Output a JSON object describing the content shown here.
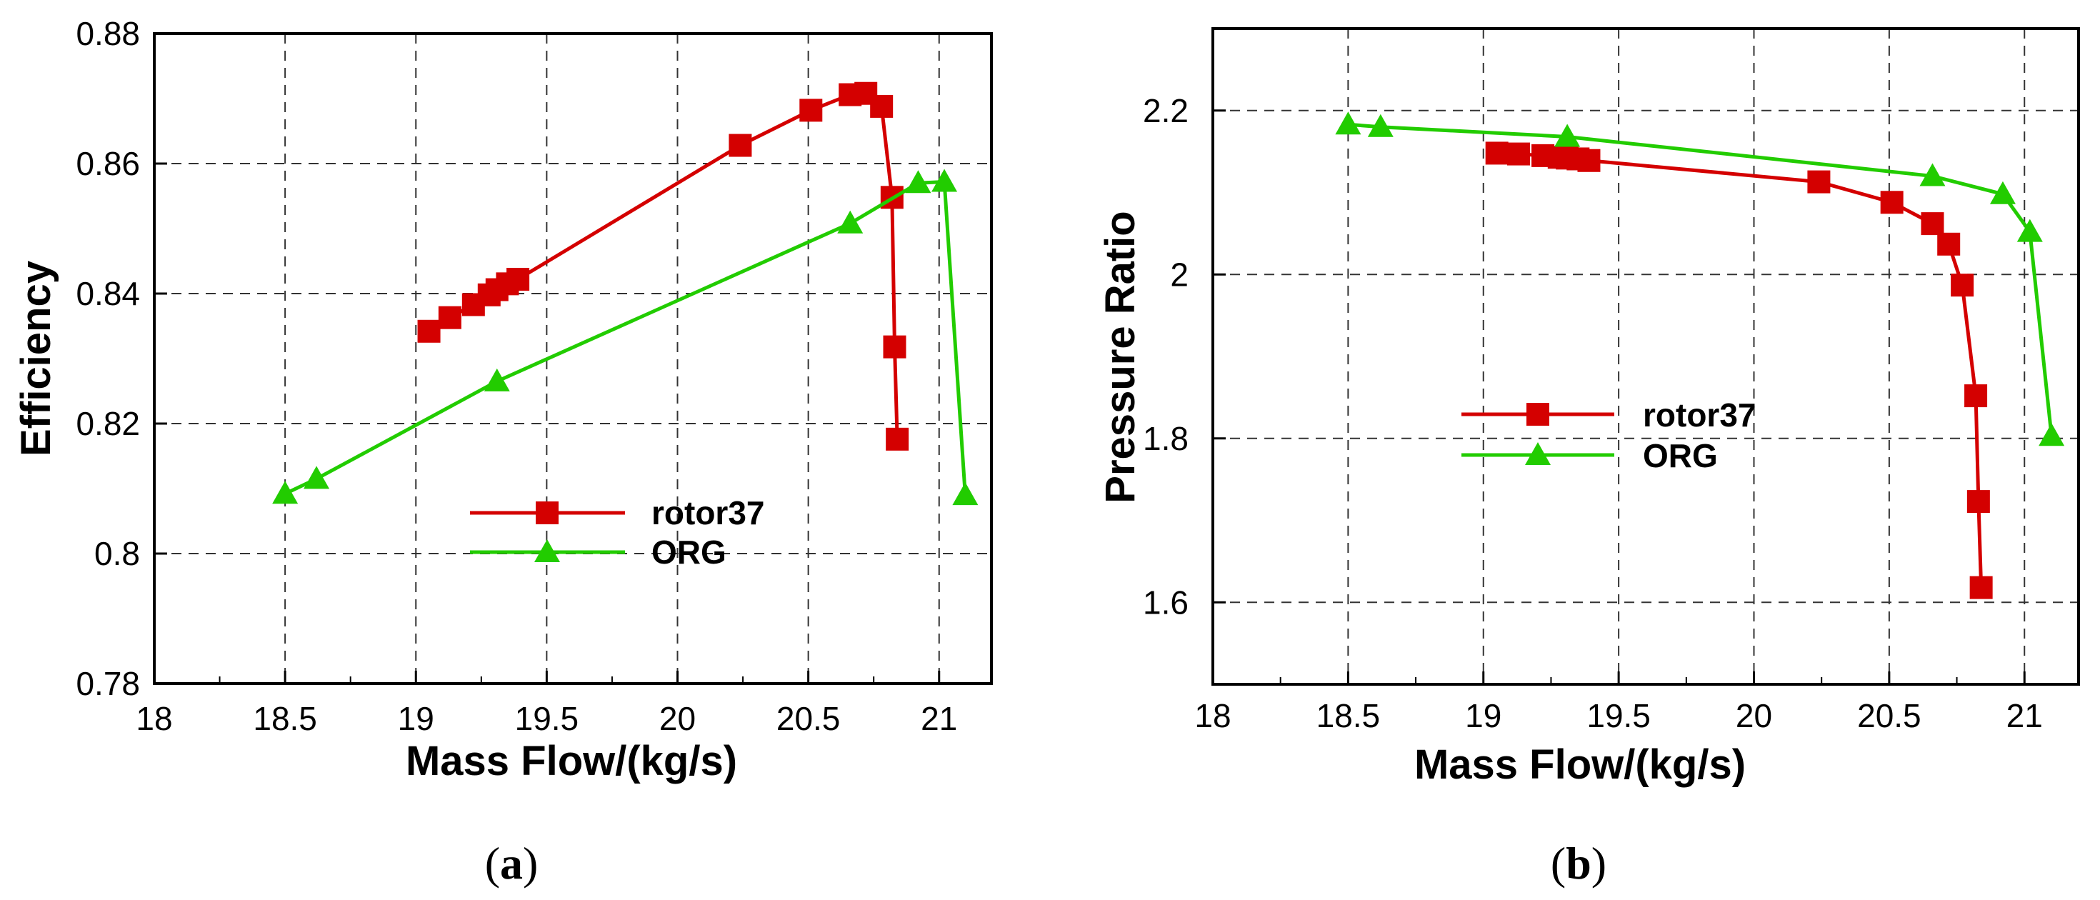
{
  "chart_data": [
    {
      "type": "line",
      "panel_label": "a",
      "xlabel": "Mass Flow/(kg/s)",
      "ylabel": "Efficiency",
      "xlim": [
        18,
        21.2
      ],
      "ylim": [
        0.78,
        0.88
      ],
      "xticks": [
        18,
        18.5,
        19,
        19.5,
        20,
        20.5,
        21
      ],
      "xtick_labels": [
        "18",
        "18.5",
        "19",
        "19.5",
        "20",
        "20.5",
        "21"
      ],
      "yticks": [
        0.78,
        0.8,
        0.82,
        0.84,
        0.86,
        0.88
      ],
      "ytick_labels": [
        "0.78",
        "0.8",
        "0.82",
        "0.84",
        "0.86",
        "0.88"
      ],
      "grid": true,
      "legend_position": "lower-middle",
      "series": [
        {
          "name": "rotor37",
          "color": "#d40000",
          "marker": "square",
          "x": [
            19.05,
            19.13,
            19.22,
            19.28,
            19.31,
            19.35,
            19.39,
            20.24,
            20.51,
            20.66,
            20.72,
            20.78,
            20.82,
            20.83,
            20.84
          ],
          "y": [
            0.8342,
            0.8363,
            0.8383,
            0.8398,
            0.8406,
            0.8415,
            0.8422,
            0.8628,
            0.8682,
            0.8706,
            0.8708,
            0.8688,
            0.8548,
            0.8318,
            0.8176
          ]
        },
        {
          "name": "ORG",
          "color": "#22cc00",
          "marker": "triangle",
          "x": [
            18.5,
            18.62,
            19.31,
            20.66,
            20.92,
            21.02,
            21.1
          ],
          "y": [
            0.8092,
            0.8115,
            0.8265,
            0.8508,
            0.857,
            0.8572,
            0.809
          ]
        }
      ]
    },
    {
      "type": "line",
      "panel_label": "b",
      "xlabel": "Mass Flow/(kg/s)",
      "ylabel": "Pressure Ratio",
      "xlim": [
        18,
        21.2
      ],
      "ylim": [
        1.5,
        2.3
      ],
      "xticks": [
        18,
        18.5,
        19,
        19.5,
        20,
        20.5,
        21
      ],
      "xtick_labels": [
        "18",
        "18.5",
        "19",
        "19.5",
        "20",
        "20.5",
        "21"
      ],
      "yticks": [
        1.6,
        1.8,
        2,
        2.2
      ],
      "ytick_labels": [
        "1.6",
        "1.8",
        "2",
        "2.2"
      ],
      "grid": true,
      "legend_position": "center",
      "series": [
        {
          "name": "rotor37",
          "color": "#d40000",
          "marker": "square",
          "x": [
            19.05,
            19.13,
            19.22,
            19.28,
            19.31,
            19.35,
            19.39,
            20.24,
            20.51,
            20.66,
            20.72,
            20.77,
            20.82,
            20.83,
            20.84
          ],
          "y": [
            2.148,
            2.147,
            2.145,
            2.143,
            2.142,
            2.141,
            2.139,
            2.113,
            2.088,
            2.062,
            2.037,
            1.987,
            1.852,
            1.723,
            1.618
          ]
        },
        {
          "name": "ORG",
          "color": "#22cc00",
          "marker": "triangle",
          "x": [
            18.5,
            18.62,
            19.31,
            20.66,
            20.92,
            21.02,
            21.1
          ],
          "y": [
            2.183,
            2.18,
            2.168,
            2.12,
            2.098,
            2.052,
            1.803
          ]
        }
      ]
    }
  ]
}
